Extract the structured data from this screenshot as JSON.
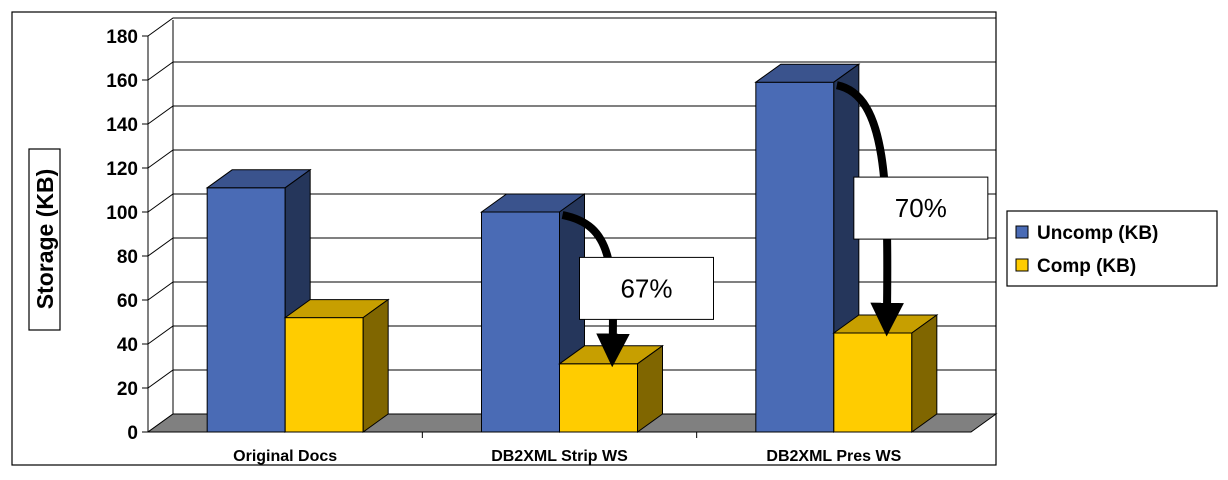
{
  "chart_data": {
    "type": "bar",
    "title": "",
    "xlabel": "",
    "ylabel": "Storage (KB)",
    "categories": [
      "Original Docs",
      "DB2XML Strip WS",
      "DB2XML Pres WS"
    ],
    "series": [
      {
        "name": "Uncomp (KB)",
        "values": [
          111,
          100,
          159
        ],
        "color": "#4A6BB5"
      },
      {
        "name": "Comp (KB)",
        "values": [
          52,
          31,
          45
        ],
        "color": "#FFCC00"
      }
    ],
    "ylim": [
      0,
      180
    ],
    "yticks": [
      0,
      20,
      40,
      60,
      80,
      100,
      120,
      140,
      160,
      180
    ],
    "grid": true,
    "legend": "right",
    "annotations": [
      {
        "category": "DB2XML Strip WS",
        "text": "67%"
      },
      {
        "category": "DB2XML Pres WS",
        "text": "70%"
      }
    ]
  }
}
